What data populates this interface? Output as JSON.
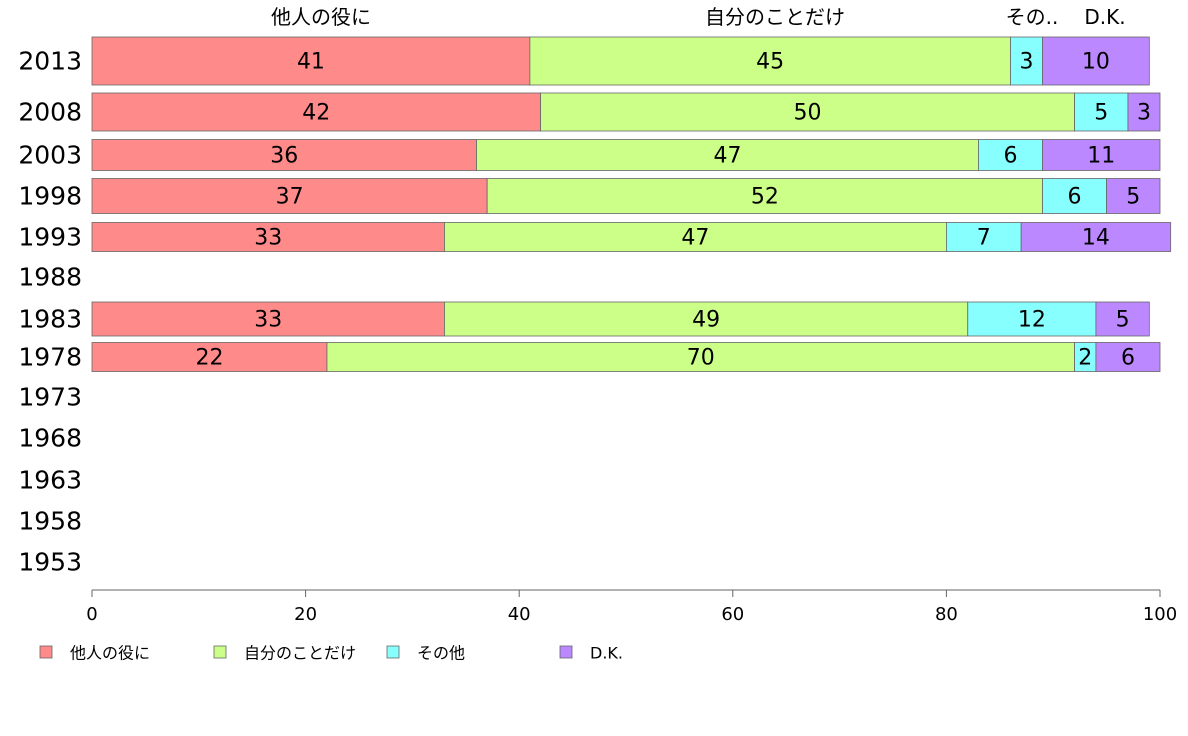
{
  "chart_data": {
    "type": "bar",
    "orientation": "horizontal",
    "stacked": true,
    "title": "",
    "xlabel": "",
    "ylabel": "",
    "xlim": [
      0,
      100
    ],
    "x_ticks": [
      0,
      20,
      40,
      60,
      80,
      100
    ],
    "categories": [
      "2013",
      "2008",
      "2003",
      "1998",
      "1993",
      "1988",
      "1983",
      "1978",
      "1973",
      "1968",
      "1963",
      "1958",
      "1953"
    ],
    "series": [
      {
        "name": "他人の役に",
        "color": "#ff8a8a",
        "values": [
          41,
          42,
          36,
          37,
          33,
          null,
          33,
          22,
          null,
          null,
          null,
          null,
          null
        ]
      },
      {
        "name": "自分のことだけ",
        "color": "#ccff88",
        "values": [
          45,
          50,
          47,
          52,
          47,
          null,
          49,
          70,
          null,
          null,
          null,
          null,
          null
        ]
      },
      {
        "name": "その他",
        "color": "#88ffff",
        "values": [
          3,
          5,
          6,
          6,
          7,
          null,
          12,
          2,
          null,
          null,
          null,
          null,
          null
        ]
      },
      {
        "name": "D.K.",
        "color": "#bb88ff",
        "values": [
          10,
          3,
          11,
          5,
          14,
          null,
          5,
          6,
          null,
          null,
          null,
          null,
          null
        ]
      }
    ],
    "top_labels": [
      "他人の役に",
      "自分のことだけ",
      "その..",
      "D.K."
    ],
    "legend_position": "bottom-left",
    "grid": false
  }
}
